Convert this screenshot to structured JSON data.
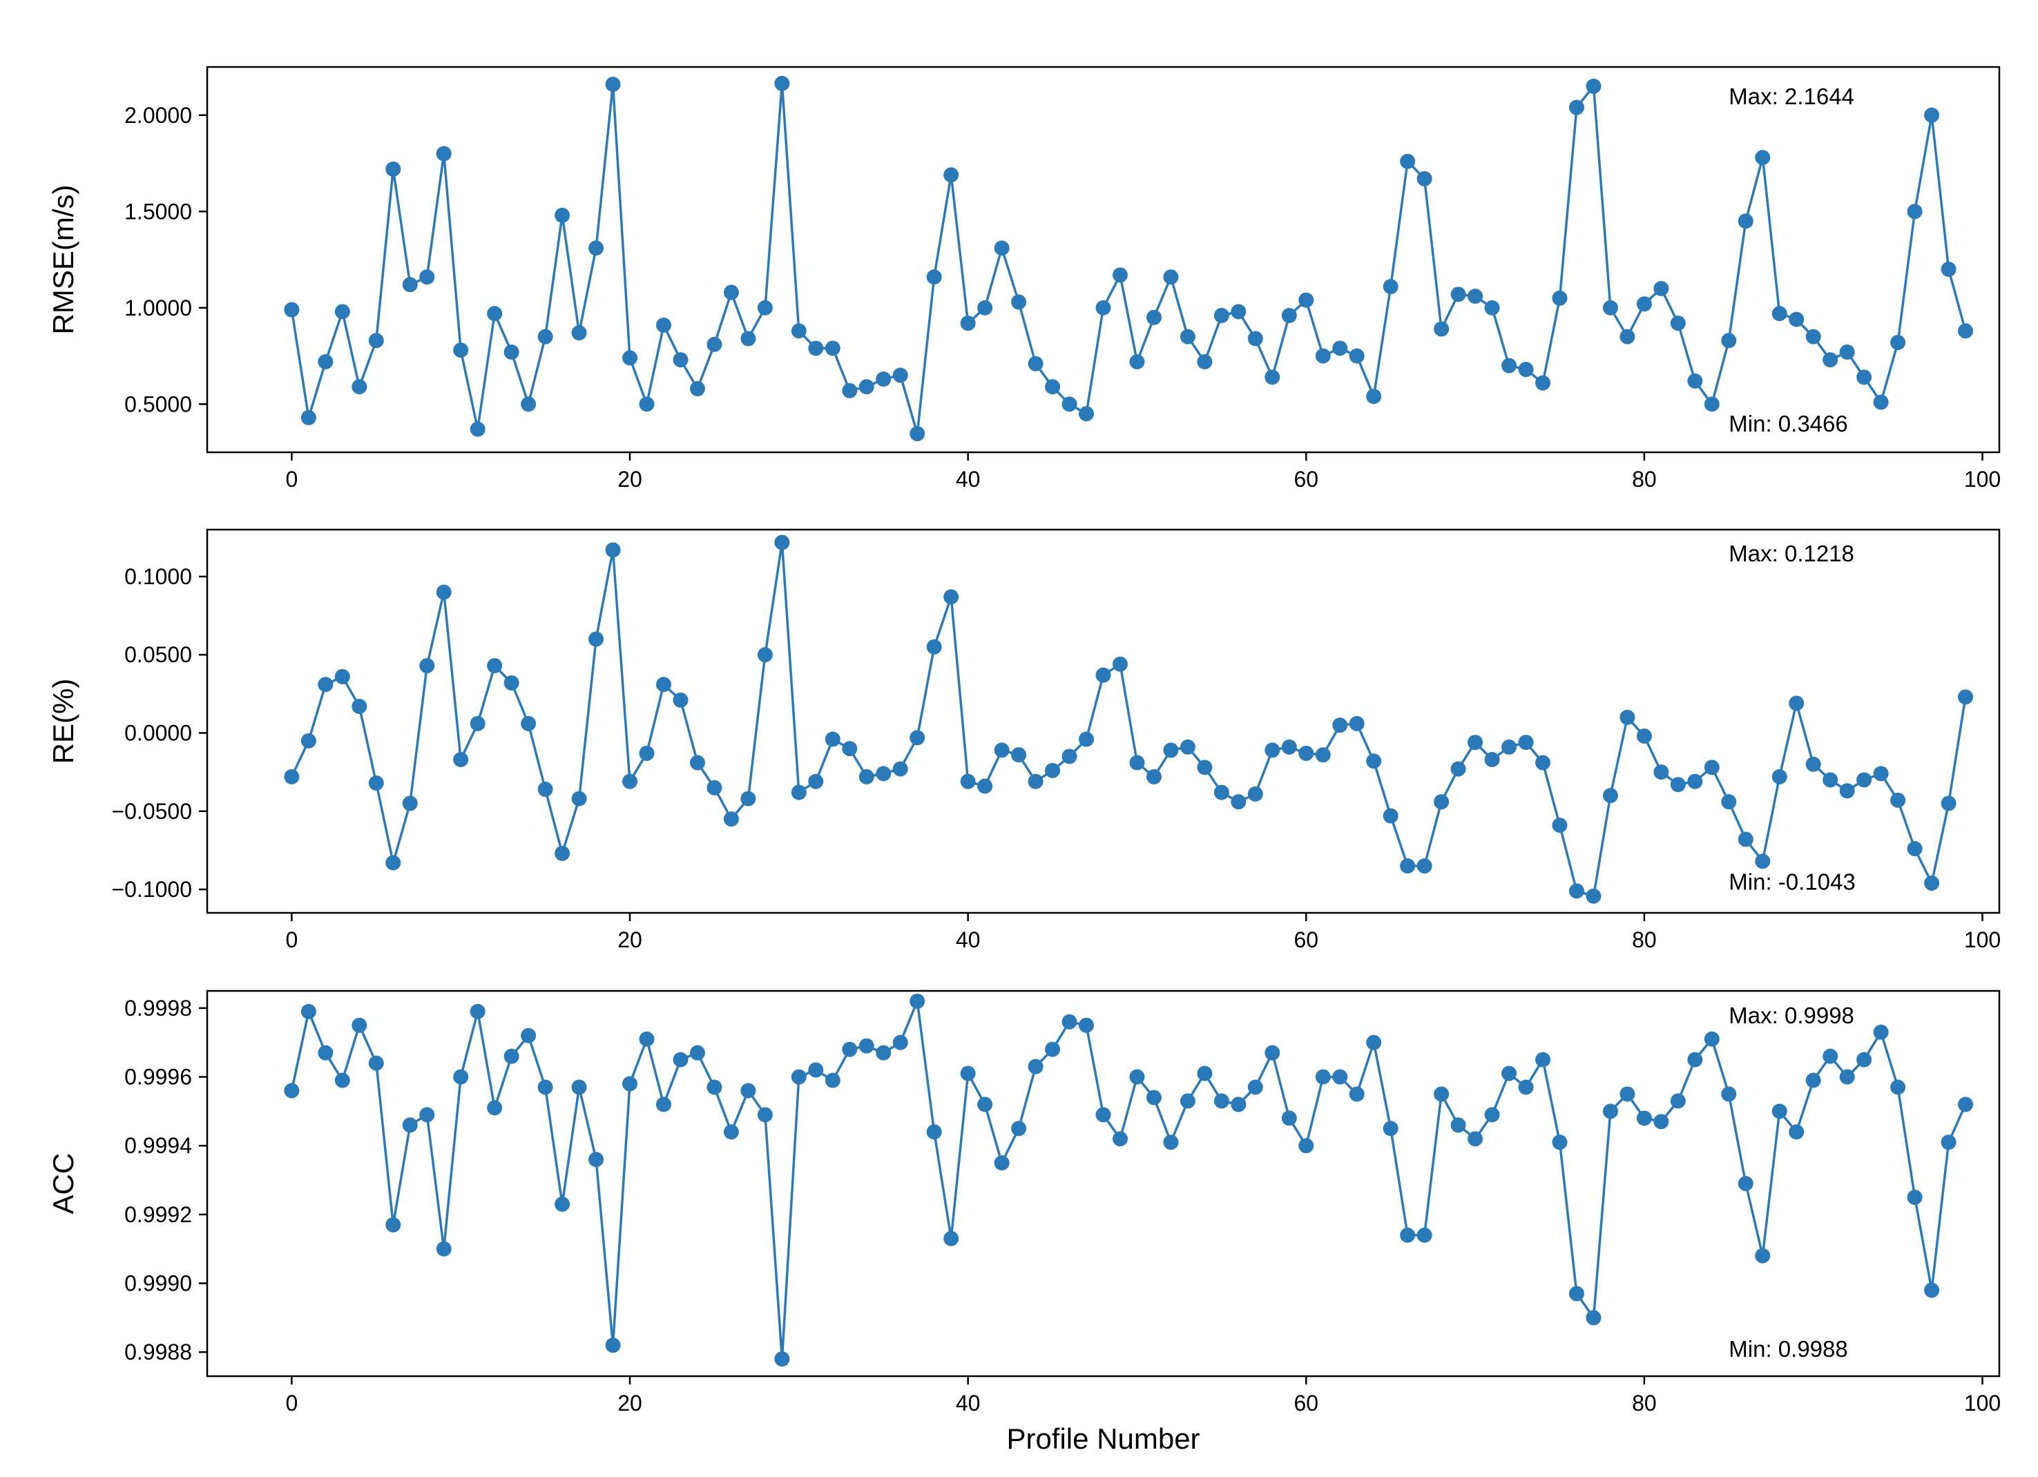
{
  "chart_data": [
    {
      "type": "line",
      "ylabel": "RMSE(m/s)",
      "xlabel": "",
      "x": [
        0,
        1,
        2,
        3,
        4,
        5,
        6,
        7,
        8,
        9,
        10,
        11,
        12,
        13,
        14,
        15,
        16,
        17,
        18,
        19,
        20,
        21,
        22,
        23,
        24,
        25,
        26,
        27,
        28,
        29,
        30,
        31,
        32,
        33,
        34,
        35,
        36,
        37,
        38,
        39,
        40,
        41,
        42,
        43,
        44,
        45,
        46,
        47,
        48,
        49,
        50,
        51,
        52,
        53,
        54,
        55,
        56,
        57,
        58,
        59,
        60,
        61,
        62,
        63,
        64,
        65,
        66,
        67,
        68,
        69,
        70,
        71,
        72,
        73,
        74,
        75,
        76,
        77,
        78,
        79,
        80,
        81,
        82,
        83,
        84,
        85,
        86,
        87,
        88,
        89,
        90,
        91,
        92,
        93,
        94,
        95,
        96,
        97,
        98,
        99
      ],
      "values": [
        0.99,
        0.43,
        0.72,
        0.98,
        0.59,
        0.83,
        1.72,
        1.12,
        1.16,
        1.8,
        0.78,
        0.37,
        0.97,
        0.77,
        0.5,
        0.85,
        1.48,
        0.87,
        1.31,
        2.16,
        0.74,
        0.5,
        0.91,
        0.73,
        0.58,
        0.81,
        1.08,
        0.84,
        1.0,
        2.1644,
        0.88,
        0.79,
        0.79,
        0.57,
        0.59,
        0.63,
        0.65,
        0.3466,
        1.16,
        1.69,
        0.92,
        1.0,
        1.31,
        1.03,
        0.71,
        0.59,
        0.5,
        0.45,
        1.0,
        1.17,
        0.72,
        0.95,
        1.16,
        0.85,
        0.72,
        0.96,
        0.98,
        0.84,
        0.64,
        0.96,
        1.04,
        0.75,
        0.79,
        0.75,
        0.54,
        1.11,
        1.76,
        1.67,
        0.89,
        1.07,
        1.06,
        1.0,
        0.7,
        0.68,
        0.61,
        1.05,
        2.04,
        2.15,
        1.0,
        0.85,
        1.02,
        1.1,
        0.92,
        0.62,
        0.5,
        0.83,
        1.45,
        1.78,
        0.97,
        0.94,
        0.85,
        0.73,
        0.77,
        0.64,
        0.51,
        0.82,
        1.5,
        2.0,
        1.2,
        0.88
      ],
      "xlim": [
        -5,
        101
      ],
      "ylim": [
        0.25,
        2.25
      ],
      "xticks": [
        0,
        20,
        40,
        60,
        80,
        100
      ],
      "yticks": [
        0.5,
        1.0,
        1.5,
        2.0
      ],
      "xtick_labels": [
        "0",
        "20",
        "40",
        "60",
        "80",
        "100"
      ],
      "ytick_labels": [
        "0.5000",
        "1.0000",
        "1.5000",
        "2.0000"
      ],
      "annotations": [
        {
          "text": "Max: 2.1644",
          "x": 85,
          "y": 2.1
        }
      ],
      "annotation_min": {
        "text": "Min: 0.3466",
        "x": 85,
        "y": 0.4
      },
      "color": "#2a7ab9"
    },
    {
      "type": "line",
      "ylabel": "RE(%)",
      "xlabel": "",
      "x": [
        0,
        1,
        2,
        3,
        4,
        5,
        6,
        7,
        8,
        9,
        10,
        11,
        12,
        13,
        14,
        15,
        16,
        17,
        18,
        19,
        20,
        21,
        22,
        23,
        24,
        25,
        26,
        27,
        28,
        29,
        30,
        31,
        32,
        33,
        34,
        35,
        36,
        37,
        38,
        39,
        40,
        41,
        42,
        43,
        44,
        45,
        46,
        47,
        48,
        49,
        50,
        51,
        52,
        53,
        54,
        55,
        56,
        57,
        58,
        59,
        60,
        61,
        62,
        63,
        64,
        65,
        66,
        67,
        68,
        69,
        70,
        71,
        72,
        73,
        74,
        75,
        76,
        77,
        78,
        79,
        80,
        81,
        82,
        83,
        84,
        85,
        86,
        87,
        88,
        89,
        90,
        91,
        92,
        93,
        94,
        95,
        96,
        97,
        98,
        99
      ],
      "values": [
        -0.028,
        -0.005,
        0.031,
        0.036,
        0.017,
        -0.032,
        -0.083,
        -0.045,
        0.043,
        0.09,
        -0.017,
        0.006,
        0.043,
        0.032,
        0.006,
        -0.036,
        -0.077,
        -0.042,
        0.06,
        0.117,
        -0.031,
        -0.013,
        0.031,
        0.021,
        -0.019,
        -0.035,
        -0.055,
        -0.042,
        0.05,
        0.1218,
        -0.038,
        -0.031,
        -0.004,
        -0.01,
        -0.028,
        -0.026,
        -0.023,
        -0.003,
        0.055,
        0.087,
        -0.031,
        -0.034,
        -0.011,
        -0.014,
        -0.031,
        -0.024,
        -0.015,
        -0.004,
        0.037,
        0.044,
        -0.019,
        -0.028,
        -0.011,
        -0.009,
        -0.022,
        -0.038,
        -0.044,
        -0.039,
        -0.011,
        -0.009,
        -0.013,
        -0.014,
        0.005,
        0.006,
        -0.018,
        -0.053,
        -0.085,
        -0.085,
        -0.044,
        -0.023,
        -0.006,
        -0.017,
        -0.009,
        -0.006,
        -0.019,
        -0.059,
        -0.101,
        -0.1043,
        -0.04,
        0.01,
        -0.002,
        -0.025,
        -0.033,
        -0.031,
        -0.022,
        -0.044,
        -0.068,
        -0.082,
        -0.028,
        0.019,
        -0.02,
        -0.03,
        -0.037,
        -0.03,
        -0.026,
        -0.043,
        -0.074,
        -0.096,
        -0.045,
        0.023
      ],
      "xlim": [
        -5,
        101
      ],
      "ylim": [
        -0.115,
        0.13
      ],
      "xticks": [
        0,
        20,
        40,
        60,
        80,
        100
      ],
      "yticks": [
        -0.1,
        -0.05,
        0.0,
        0.05,
        0.1
      ],
      "xtick_labels": [
        "0",
        "20",
        "40",
        "60",
        "80",
        "100"
      ],
      "ytick_labels": [
        "−0.1000",
        "−0.0500",
        "0.0000",
        "0.0500",
        "0.1000"
      ],
      "annotations": [
        {
          "text": "Max: 0.1218",
          "x": 85,
          "y": 0.115
        }
      ],
      "annotation_min": {
        "text": "Min: -0.1043",
        "x": 85,
        "y": -0.095
      },
      "color": "#2a7ab9"
    },
    {
      "type": "line",
      "ylabel": "ACC",
      "xlabel": "Profile Number",
      "x": [
        0,
        1,
        2,
        3,
        4,
        5,
        6,
        7,
        8,
        9,
        10,
        11,
        12,
        13,
        14,
        15,
        16,
        17,
        18,
        19,
        20,
        21,
        22,
        23,
        24,
        25,
        26,
        27,
        28,
        29,
        30,
        31,
        32,
        33,
        34,
        35,
        36,
        37,
        38,
        39,
        40,
        41,
        42,
        43,
        44,
        45,
        46,
        47,
        48,
        49,
        50,
        51,
        52,
        53,
        54,
        55,
        56,
        57,
        58,
        59,
        60,
        61,
        62,
        63,
        64,
        65,
        66,
        67,
        68,
        69,
        70,
        71,
        72,
        73,
        74,
        75,
        76,
        77,
        78,
        79,
        80,
        81,
        82,
        83,
        84,
        85,
        86,
        87,
        88,
        89,
        90,
        91,
        92,
        93,
        94,
        95,
        96,
        97,
        98,
        99
      ],
      "values": [
        0.99956,
        0.99979,
        0.99967,
        0.99959,
        0.99975,
        0.99964,
        0.99917,
        0.99946,
        0.99949,
        0.9991,
        0.9996,
        0.99979,
        0.99951,
        0.99966,
        0.99972,
        0.99957,
        0.99923,
        0.99957,
        0.99936,
        0.99882,
        0.99958,
        0.99971,
        0.99952,
        0.99965,
        0.99967,
        0.99957,
        0.99944,
        0.99956,
        0.99949,
        0.99878,
        0.9996,
        0.99962,
        0.99959,
        0.99968,
        0.99969,
        0.99967,
        0.9997,
        0.99982,
        0.99944,
        0.99913,
        0.99961,
        0.99952,
        0.99935,
        0.99945,
        0.99963,
        0.99968,
        0.99976,
        0.99975,
        0.99949,
        0.99942,
        0.9996,
        0.99954,
        0.99941,
        0.99953,
        0.99961,
        0.99953,
        0.99952,
        0.99957,
        0.99967,
        0.99948,
        0.9994,
        0.9996,
        0.9996,
        0.99955,
        0.9997,
        0.99945,
        0.99914,
        0.99914,
        0.99955,
        0.99946,
        0.99942,
        0.99949,
        0.99961,
        0.99957,
        0.99965,
        0.99941,
        0.99897,
        0.9989,
        0.9995,
        0.99955,
        0.99948,
        0.99947,
        0.99953,
        0.99965,
        0.99971,
        0.99955,
        0.99929,
        0.99908,
        0.9995,
        0.99944,
        0.99959,
        0.99966,
        0.9996,
        0.99965,
        0.99973,
        0.99957,
        0.99925,
        0.99898,
        0.99941,
        0.99952
      ],
      "xlim": [
        -5,
        101
      ],
      "ylim": [
        0.99873,
        0.99985
      ],
      "xticks": [
        0,
        20,
        40,
        60,
        80,
        100
      ],
      "yticks": [
        0.9988,
        0.999,
        0.9992,
        0.9994,
        0.9996,
        0.9998
      ],
      "xtick_labels": [
        "0",
        "20",
        "40",
        "60",
        "80",
        "100"
      ],
      "ytick_labels": [
        "0.9988",
        "0.9990",
        "0.9992",
        "0.9994",
        "0.9996",
        "0.9998"
      ],
      "annotations": [
        {
          "text": "Max: 0.9998",
          "x": 85,
          "y": 0.99978
        }
      ],
      "annotation_min": {
        "text": "Min: 0.9988",
        "x": 85,
        "y": 0.99881
      },
      "color": "#2a7ab9"
    }
  ]
}
